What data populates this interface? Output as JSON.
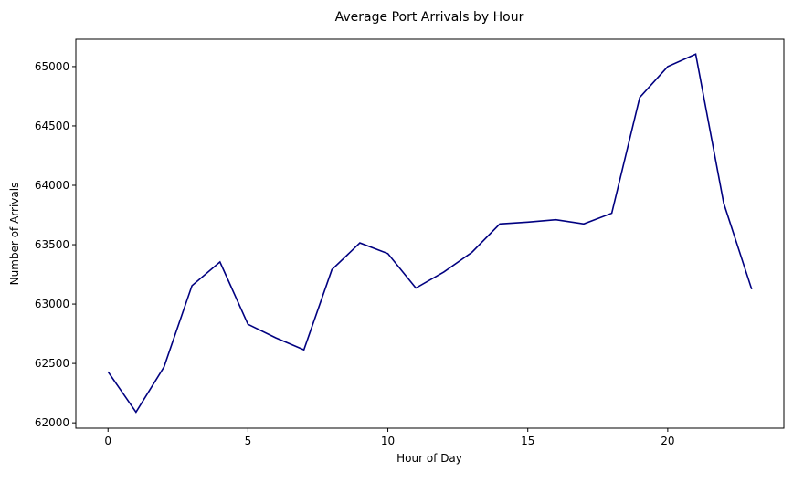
{
  "chart_data": {
    "type": "line",
    "title": "Average Port Arrivals by Hour",
    "xlabel": "Hour of Day",
    "ylabel": "Number of Arrivals",
    "xlim": [
      -1.15,
      24.15
    ],
    "ylim": [
      61955,
      65230
    ],
    "xticks": [
      0,
      5,
      10,
      15,
      20
    ],
    "yticks": [
      62000,
      62500,
      63000,
      63500,
      64000,
      64500,
      65000
    ],
    "grid": false,
    "legend": "none",
    "series": [
      {
        "color": "#000080",
        "x": [
          0,
          1,
          2,
          3,
          4,
          5,
          6,
          7,
          8,
          9,
          10,
          11,
          12,
          13,
          14,
          15,
          16,
          17,
          18,
          19,
          20,
          21,
          22,
          23
        ],
        "values": [
          62430,
          62090,
          62470,
          63155,
          63355,
          62830,
          62715,
          62615,
          63290,
          63515,
          63425,
          63135,
          63270,
          63435,
          63675,
          63690,
          63710,
          63675,
          63765,
          64740,
          65000,
          65105,
          63850,
          63125
        ]
      }
    ]
  }
}
